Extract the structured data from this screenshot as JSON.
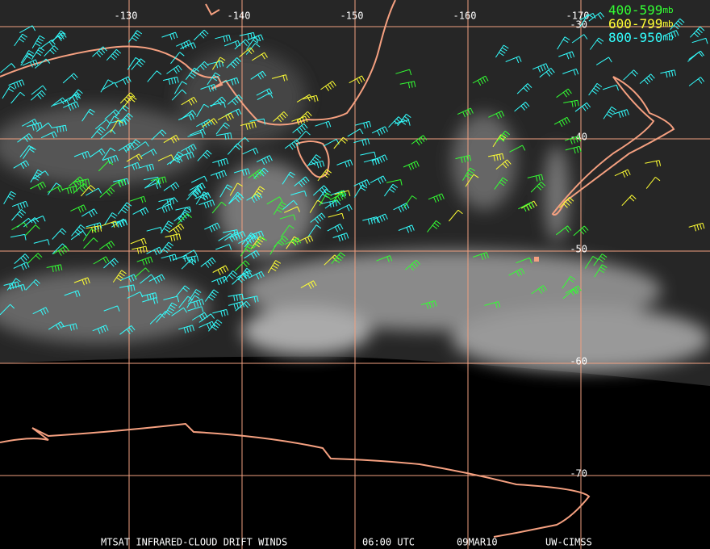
{
  "grid": {
    "longitude_labels": [
      "-130",
      "-140",
      "-150",
      "-160",
      "-170"
    ],
    "latitude_labels": [
      "-30",
      "-40",
      "-50",
      "-60",
      "-70"
    ]
  },
  "legend": [
    {
      "label": "400-599",
      "unit": "mb",
      "color": "#33ff33"
    },
    {
      "label": "600-799",
      "unit": "mb",
      "color": "#ffff33"
    },
    {
      "label": "800-950",
      "unit": "mb",
      "color": "#33ffff"
    }
  ],
  "footer": {
    "product": "MTSAT INFRARED-CLOUD DRIFT WINDS",
    "time": "06:00 UTC",
    "date": "09MAR10",
    "source": "UW-CIMSS"
  }
}
